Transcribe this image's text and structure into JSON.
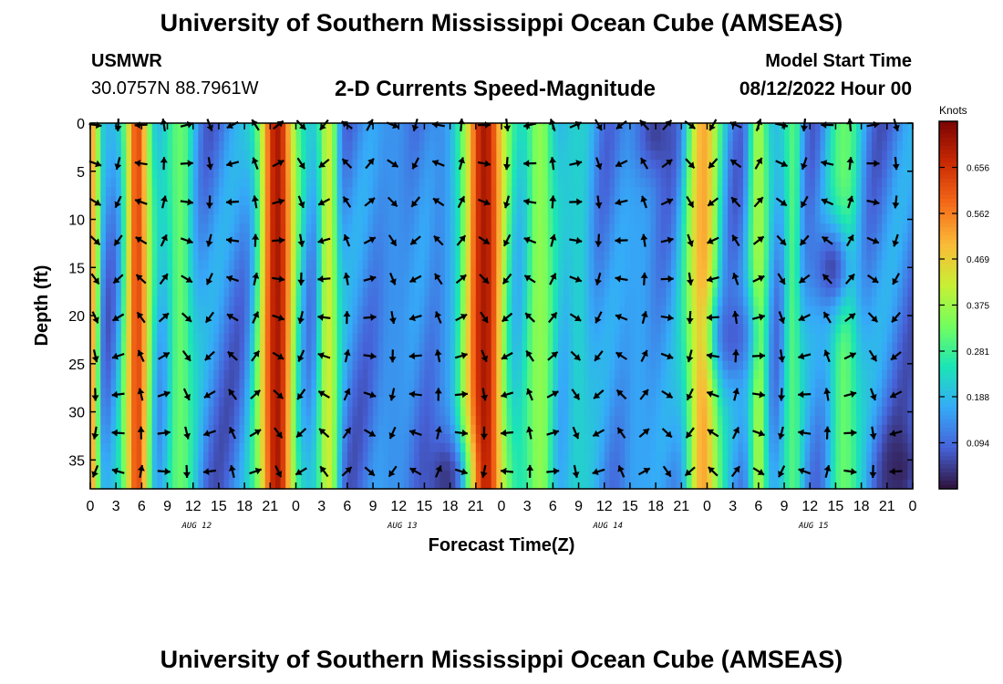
{
  "header": {
    "title": "University of Southern Mississippi Ocean Cube (AMSEAS)",
    "station_id": "USMWR",
    "coordinates": "30.0757N  88.7961W",
    "product": "2-D Currents Speed-Magnitude",
    "model_start_label": "Model Start Time",
    "model_start_value": "08/12/2022 Hour 00"
  },
  "footer": {
    "title": "University of Southern Mississippi Ocean Cube (AMSEAS)"
  },
  "chart_data": {
    "type": "heatmap",
    "title": "2-D Currents Speed-Magnitude",
    "xlabel": "Forecast Time(Z)",
    "ylabel": "Depth (ft)",
    "x_tick_labels": [
      "0",
      "3",
      "6",
      "9",
      "12",
      "15",
      "18",
      "21",
      "0",
      "3",
      "6",
      "9",
      "12",
      "15",
      "18",
      "21",
      "0",
      "3",
      "6",
      "9",
      "12",
      "15",
      "18",
      "21",
      "0",
      "3",
      "6",
      "9",
      "12",
      "15",
      "18",
      "21",
      "0"
    ],
    "x_range_hours": [
      0,
      96
    ],
    "date_labels": [
      {
        "label": "AUG 12",
        "hour": 12
      },
      {
        "label": "AUG 13",
        "hour": 36
      },
      {
        "label": "AUG 14",
        "hour": 60
      },
      {
        "label": "AUG 15",
        "hour": 84
      }
    ],
    "y_ticks": [
      0,
      5,
      10,
      15,
      20,
      25,
      30,
      35
    ],
    "y_range_ft": [
      0,
      38
    ],
    "vector_depths_ft": [
      0,
      4,
      8,
      12,
      16,
      20,
      24,
      28,
      32,
      36
    ],
    "vector_interval_hours": 2.67,
    "colorbar": {
      "unit": "Knots",
      "ticks": [
        "0.656",
        "0.562",
        "0.469",
        "0.375",
        "0.281",
        "0.188",
        "0.094"
      ],
      "tick_values": [
        0.656,
        0.562,
        0.469,
        0.375,
        0.281,
        0.188,
        0.094
      ],
      "range": [
        0,
        0.75
      ],
      "colors": [
        "#30123b",
        "#4662d8",
        "#35abf8",
        "#1be5b5",
        "#74fe5d",
        "#c9ef34",
        "#fbb938",
        "#f56918",
        "#c92903",
        "#7a0403"
      ]
    },
    "speed_peaks": [
      {
        "hour": 0.3,
        "speed": 0.5,
        "width": 0.8
      },
      {
        "hour": 5.5,
        "speed": 0.62,
        "width": 1.6
      },
      {
        "hour": 10.5,
        "speed": 0.32,
        "width": 1.8
      },
      {
        "hour": 21.8,
        "speed": 0.7,
        "width": 2.2
      },
      {
        "hour": 27.8,
        "speed": 0.42,
        "width": 1.2
      },
      {
        "hour": 35.5,
        "speed": 0.14,
        "width": 2.5
      },
      {
        "hour": 41.5,
        "speed": 0.12,
        "width": 2.0
      },
      {
        "hour": 46,
        "speed": 0.7,
        "width": 2.6
      },
      {
        "hour": 52.5,
        "speed": 0.36,
        "width": 2.0
      },
      {
        "hour": 57,
        "speed": 0.22,
        "width": 2.0
      },
      {
        "hour": 64,
        "speed": 0.16,
        "width": 2.5
      },
      {
        "hour": 71.5,
        "speed": 0.52,
        "width": 2.0
      },
      {
        "hour": 78,
        "speed": 0.38,
        "width": 1.2
      },
      {
        "hour": 82,
        "speed": 0.3,
        "width": 1.2
      },
      {
        "hour": 88,
        "speed": 0.32,
        "width": 2.0
      }
    ],
    "low_spots": [
      {
        "hour": 94.5,
        "depth": 36,
        "speed": 0.02
      },
      {
        "hour": 66,
        "depth": 1,
        "speed": 0.05
      },
      {
        "hour": 86.5,
        "depth": 15,
        "speed": 0.06
      },
      {
        "hour": 75,
        "depth": 22,
        "speed": 0.08
      },
      {
        "hour": 41.5,
        "depth": 37,
        "speed": 0.04
      }
    ]
  }
}
